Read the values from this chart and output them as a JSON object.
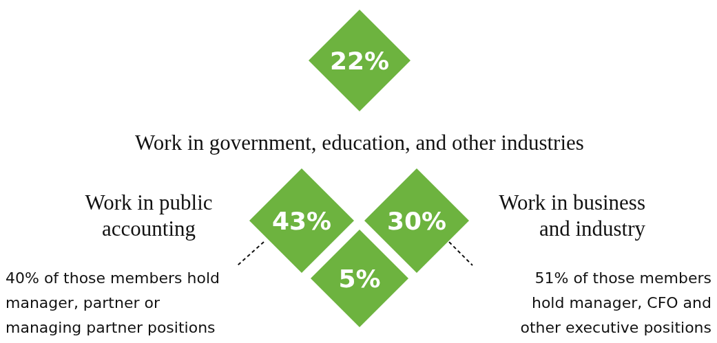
{
  "chart_data": {
    "type": "other",
    "categories": [
      "Work in government, education, and other industries",
      "Work in public accounting",
      "Work in business and industry",
      null
    ],
    "values": [
      22,
      43,
      30,
      5
    ],
    "value_labels": [
      "22%",
      "43%",
      "30%",
      "5%"
    ],
    "colors": [
      "#6db33f",
      "#6db33f",
      "#6db33f",
      "#6db33f"
    ],
    "annotations": [
      "40% of those members hold manager, partner or managing partner positions",
      "51% of those members hold manager, CFO and other executive positions"
    ]
  }
}
